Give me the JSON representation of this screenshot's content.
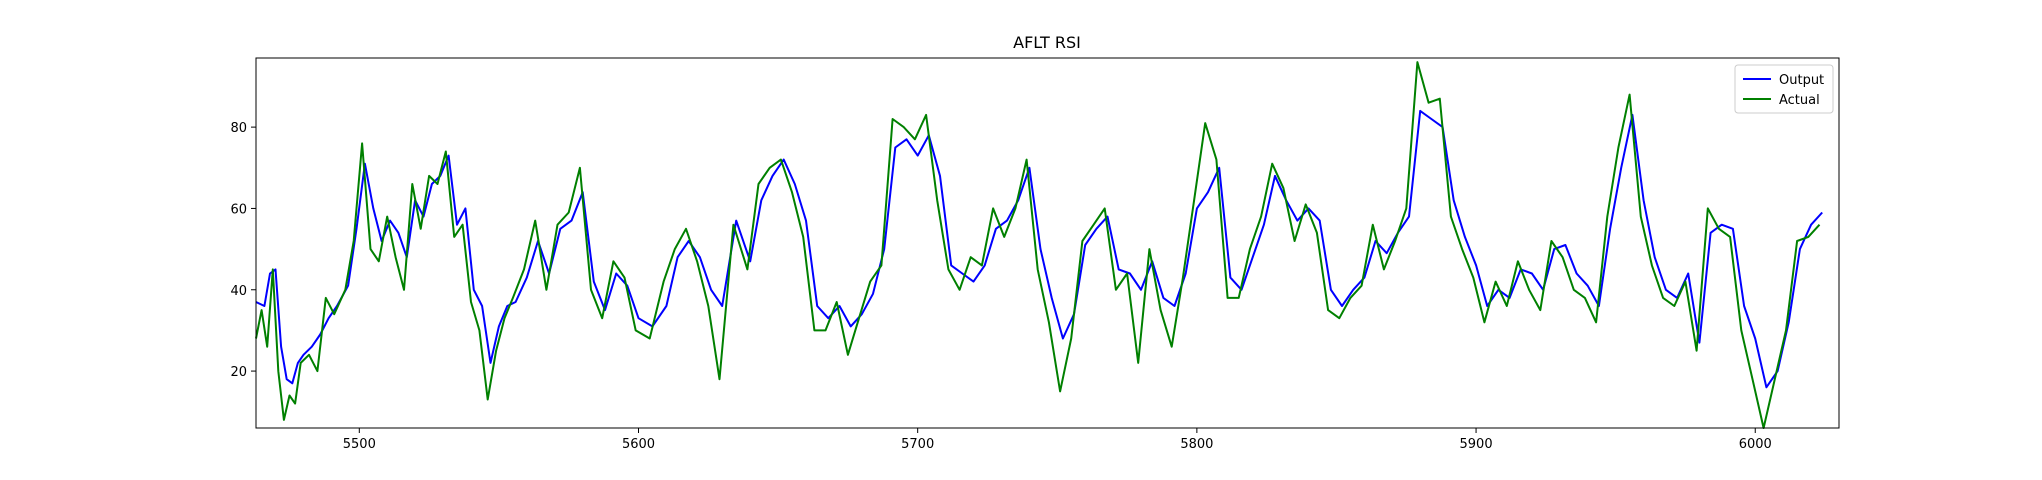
{
  "chart_data": {
    "type": "line",
    "title": "AFLT RSI",
    "xlabel": "",
    "ylabel": "",
    "xlim": [
      5463,
      6030
    ],
    "ylim": [
      6,
      97
    ],
    "xticks": [
      5500,
      5600,
      5700,
      5800,
      5900,
      6000
    ],
    "yticks": [
      20,
      40,
      60,
      80
    ],
    "grid": false,
    "legend_position": "top-right",
    "series": [
      {
        "name": "Output",
        "color": "#0000ff",
        "x": [
          5463,
          5466,
          5468,
          5470,
          5472,
          5474,
          5476,
          5478,
          5480,
          5483,
          5486,
          5489,
          5492,
          5496,
          5499,
          5502,
          5505,
          5508,
          5511,
          5514,
          5517,
          5520,
          5523,
          5526,
          5529,
          5532,
          5535,
          5538,
          5541,
          5544,
          5547,
          5550,
          5553,
          5556,
          5560,
          5564,
          5568,
          5572,
          5576,
          5580,
          5584,
          5588,
          5592,
          5596,
          5600,
          5605,
          5610,
          5614,
          5618,
          5622,
          5626,
          5630,
          5635,
          5640,
          5644,
          5648,
          5652,
          5656,
          5660,
          5664,
          5668,
          5672,
          5676,
          5680,
          5684,
          5688,
          5692,
          5696,
          5700,
          5704,
          5708,
          5712,
          5716,
          5720,
          5724,
          5728,
          5732,
          5736,
          5740,
          5744,
          5748,
          5752,
          5756,
          5760,
          5764,
          5768,
          5772,
          5776,
          5780,
          5784,
          5788,
          5792,
          5796,
          5800,
          5804,
          5808,
          5812,
          5816,
          5820,
          5824,
          5828,
          5832,
          5836,
          5840,
          5844,
          5848,
          5852,
          5856,
          5860,
          5864,
          5868,
          5872,
          5876,
          5880,
          5884,
          5888,
          5892,
          5896,
          5900,
          5904,
          5908,
          5912,
          5916,
          5920,
          5924,
          5928,
          5932,
          5936,
          5940,
          5944,
          5948,
          5952,
          5956,
          5960,
          5964,
          5968,
          5972,
          5976,
          5980,
          5984,
          5988,
          5992,
          5996,
          6000,
          6004,
          6008,
          6012,
          6016,
          6020,
          6024
        ],
        "values": [
          37,
          36,
          44,
          45,
          26,
          18,
          17,
          22,
          24,
          26,
          29,
          33,
          36,
          41,
          55,
          71,
          60,
          52,
          57,
          54,
          48,
          62,
          58,
          66,
          68,
          73,
          56,
          60,
          40,
          36,
          22,
          31,
          36,
          37,
          43,
          52,
          44,
          55,
          57,
          64,
          42,
          35,
          44,
          41,
          33,
          31,
          36,
          48,
          52,
          48,
          40,
          36,
          57,
          47,
          62,
          68,
          72,
          66,
          57,
          36,
          33,
          36,
          31,
          34,
          39,
          50,
          75,
          77,
          73,
          78,
          68,
          46,
          44,
          42,
          46,
          55,
          57,
          62,
          70,
          50,
          38,
          28,
          34,
          51,
          55,
          58,
          45,
          44,
          40,
          47,
          38,
          36,
          44,
          60,
          64,
          70,
          43,
          40,
          48,
          56,
          68,
          62,
          57,
          60,
          57,
          40,
          36,
          40,
          43,
          52,
          49,
          54,
          58,
          84,
          82,
          80,
          62,
          53,
          46,
          36,
          40,
          38,
          45,
          44,
          40,
          50,
          51,
          44,
          41,
          36,
          55,
          70,
          83,
          62,
          48,
          40,
          38,
          44,
          27,
          54,
          56,
          55,
          36,
          28,
          16,
          20,
          32,
          50,
          56,
          59
        ]
      },
      {
        "name": "Actual",
        "color": "#008000",
        "x": [
          5463,
          5465,
          5467,
          5469,
          5471,
          5473,
          5475,
          5477,
          5479,
          5482,
          5485,
          5488,
          5491,
          5495,
          5498,
          5501,
          5504,
          5507,
          5510,
          5513,
          5516,
          5519,
          5522,
          5525,
          5528,
          5531,
          5534,
          5537,
          5540,
          5543,
          5546,
          5549,
          5552,
          5555,
          5559,
          5563,
          5567,
          5571,
          5575,
          5579,
          5583,
          5587,
          5591,
          5595,
          5599,
          5604,
          5609,
          5613,
          5617,
          5621,
          5625,
          5629,
          5634,
          5639,
          5643,
          5647,
          5651,
          5655,
          5659,
          5663,
          5667,
          5671,
          5675,
          5679,
          5683,
          5687,
          5691,
          5695,
          5699,
          5703,
          5707,
          5711,
          5715,
          5719,
          5723,
          5727,
          5731,
          5735,
          5739,
          5743,
          5747,
          5751,
          5755,
          5759,
          5763,
          5767,
          5771,
          5775,
          5779,
          5783,
          5787,
          5791,
          5795,
          5799,
          5803,
          5807,
          5811,
          5815,
          5819,
          5823,
          5827,
          5831,
          5835,
          5839,
          5843,
          5847,
          5851,
          5855,
          5859,
          5863,
          5867,
          5871,
          5875,
          5879,
          5883,
          5887,
          5891,
          5895,
          5899,
          5903,
          5907,
          5911,
          5915,
          5919,
          5923,
          5927,
          5931,
          5935,
          5939,
          5943,
          5947,
          5951,
          5955,
          5959,
          5963,
          5967,
          5971,
          5975,
          5979,
          5983,
          5987,
          5991,
          5995,
          5999,
          6003,
          6007,
          6011,
          6015,
          6019,
          6023
        ],
        "values": [
          28,
          35,
          26,
          45,
          20,
          8,
          14,
          12,
          22,
          24,
          20,
          38,
          34,
          40,
          52,
          76,
          50,
          47,
          58,
          48,
          40,
          66,
          55,
          68,
          66,
          74,
          53,
          56,
          37,
          30,
          13,
          25,
          33,
          38,
          45,
          57,
          40,
          56,
          59,
          70,
          40,
          33,
          47,
          43,
          30,
          28,
          42,
          50,
          55,
          47,
          36,
          18,
          56,
          45,
          66,
          70,
          72,
          64,
          53,
          30,
          30,
          37,
          24,
          33,
          42,
          46,
          82,
          80,
          77,
          83,
          62,
          45,
          40,
          48,
          46,
          60,
          53,
          60,
          72,
          45,
          32,
          15,
          28,
          52,
          56,
          60,
          40,
          44,
          22,
          50,
          35,
          26,
          43,
          62,
          81,
          72,
          38,
          38,
          50,
          58,
          71,
          65,
          52,
          61,
          54,
          35,
          33,
          38,
          41,
          56,
          45,
          52,
          60,
          96,
          86,
          87,
          58,
          50,
          43,
          32,
          42,
          36,
          47,
          40,
          35,
          52,
          48,
          40,
          38,
          32,
          58,
          75,
          88,
          58,
          46,
          38,
          36,
          42,
          25,
          60,
          55,
          53,
          30,
          18,
          6,
          18,
          30,
          52,
          53,
          56
        ]
      }
    ]
  }
}
